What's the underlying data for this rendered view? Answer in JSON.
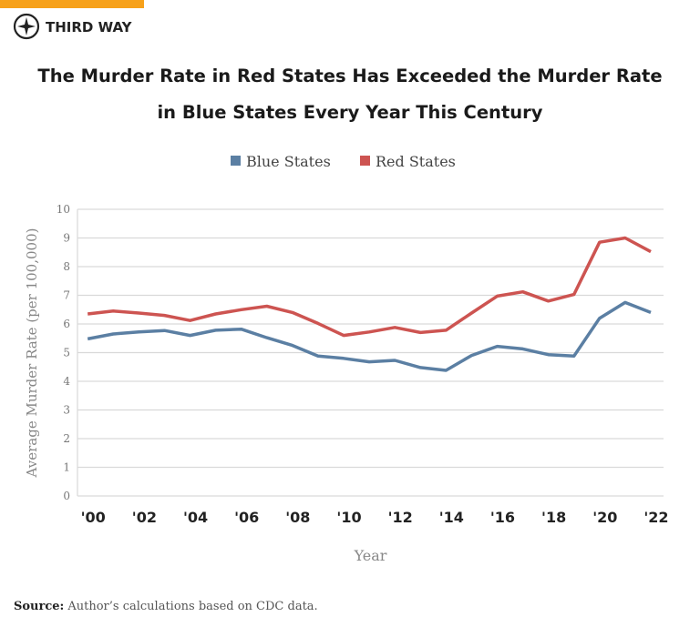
{
  "brand": "THIRD WAY",
  "chart_data": {
    "type": "line",
    "title": "The Murder Rate in Red States Has Exceeded the Murder Rate in Blue States Every Year This Century",
    "x": [
      2000,
      2001,
      2002,
      2003,
      2004,
      2005,
      2006,
      2007,
      2008,
      2009,
      2010,
      2011,
      2012,
      2013,
      2014,
      2015,
      2016,
      2017,
      2018,
      2019,
      2020,
      2021,
      2022
    ],
    "series": [
      {
        "name": "Blue States",
        "color": "#5b7fa3",
        "values": [
          5.48,
          5.65,
          5.72,
          5.77,
          5.6,
          5.78,
          5.82,
          5.52,
          5.25,
          4.88,
          4.8,
          4.68,
          4.73,
          4.48,
          4.38,
          4.9,
          5.22,
          5.13,
          4.93,
          4.88,
          6.2,
          6.75,
          6.4
        ]
      },
      {
        "name": "Red States",
        "color": "#cd5451",
        "values": [
          6.35,
          6.45,
          6.38,
          6.3,
          6.12,
          6.35,
          6.5,
          6.62,
          6.4,
          6.02,
          5.6,
          5.72,
          5.88,
          5.7,
          5.78,
          6.38,
          6.97,
          7.12,
          6.8,
          7.03,
          8.85,
          9.0,
          8.52
        ]
      }
    ],
    "xlim": [
      1999.6,
      2022.5
    ],
    "xticks": [
      {
        "value": 2000,
        "label": "'00"
      },
      {
        "value": 2002,
        "label": "'02"
      },
      {
        "value": 2004,
        "label": "'04"
      },
      {
        "value": 2006,
        "label": "'06"
      },
      {
        "value": 2008,
        "label": "'08"
      },
      {
        "value": 2010,
        "label": "'10"
      },
      {
        "value": 2012,
        "label": "'12"
      },
      {
        "value": 2014,
        "label": "'14"
      },
      {
        "value": 2016,
        "label": "'16"
      },
      {
        "value": 2018,
        "label": "'18"
      },
      {
        "value": 2020,
        "label": "'20"
      },
      {
        "value": 2022,
        "label": "'22"
      }
    ],
    "ylim": [
      0,
      10
    ],
    "yticks": [
      0,
      1,
      2,
      3,
      4,
      5,
      6,
      7,
      8,
      9,
      10
    ],
    "grid": true,
    "xlabel": "Year",
    "ylabel": "Average  Murder Rate (per 100,000)",
    "legend": "top"
  },
  "source": {
    "label": "Source:",
    "text": "Author’s calculations based on CDC data."
  }
}
